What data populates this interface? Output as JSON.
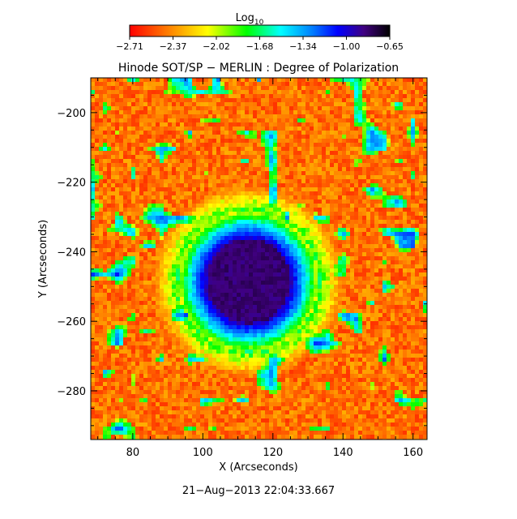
{
  "colorbar": {
    "label_base": "Log",
    "label_sub": "10",
    "tick_labels": [
      "−2.71",
      "−2.37",
      "−2.02",
      "−1.68",
      "−1.34",
      "−1.00",
      "−0.65"
    ],
    "range": [
      -2.71,
      -0.65
    ],
    "colormap": [
      "#ff0000",
      "#ff8000",
      "#ffff00",
      "#00ff00",
      "#00ffff",
      "#0080ff",
      "#0000ff",
      "#400080",
      "#000000"
    ]
  },
  "chart_data": {
    "type": "heatmap",
    "title": "Hinode SOT/SP − MERLIN : Degree of Polarization",
    "xlabel": "X (Arcseconds)",
    "ylabel": "Y (Arcseconds)",
    "xlim": [
      68,
      164
    ],
    "ylim": [
      -294,
      -190
    ],
    "xticks": [
      80,
      100,
      120,
      140,
      160
    ],
    "yticks": [
      -200,
      -220,
      -240,
      -260,
      -280
    ],
    "xtick_labels": [
      "80",
      "100",
      "120",
      "140",
      "160"
    ],
    "ytick_labels": [
      "−200",
      "−220",
      "−240",
      "−260",
      "−280"
    ],
    "value_range": [
      -2.71,
      -0.65
    ],
    "features": [
      {
        "kind": "sunspot_umbra",
        "center": [
          113,
          -248
        ],
        "radius": 12,
        "value": -0.72
      },
      {
        "kind": "penumbra",
        "center": [
          113,
          -248
        ],
        "radius": 20,
        "value": -1.6
      }
    ]
  },
  "footer": {
    "timestamp": "21−Aug−2013 22:04:33.667"
  }
}
